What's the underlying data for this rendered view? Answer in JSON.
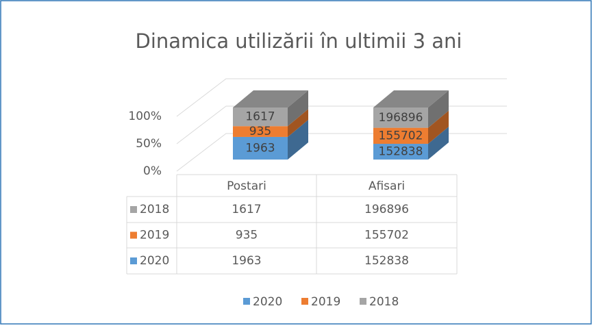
{
  "chart_data": {
    "type": "bar",
    "stacking": "percent",
    "title": "Dinamica utilizării în ultimii 3 ani",
    "categories": [
      "Postari",
      "Afisari"
    ],
    "series": [
      {
        "name": "2020",
        "color": "#5b9bd5",
        "values": [
          1963,
          152838
        ]
      },
      {
        "name": "2019",
        "color": "#ed7d31",
        "values": [
          935,
          155702
        ]
      },
      {
        "name": "2018",
        "color": "#a5a5a5",
        "values": [
          1617,
          196896
        ]
      }
    ],
    "ylim": [
      0,
      100
    ],
    "yticks": [
      {
        "value": 0,
        "label": "0%"
      },
      {
        "value": 50,
        "label": "50%"
      },
      {
        "value": 100,
        "label": "100%"
      }
    ],
    "grid": true,
    "legend": "bottom",
    "data_table": true
  }
}
